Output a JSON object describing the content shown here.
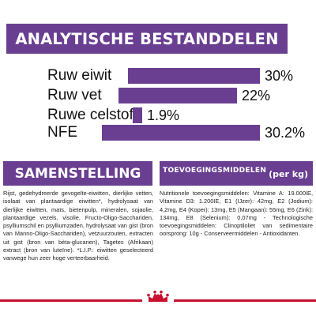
{
  "analysis": {
    "title": "ANALYTISCHE BESTANDDELEN",
    "rows": [
      {
        "label": "Ruw eiwit",
        "value_text": "30%",
        "value": 30
      },
      {
        "label": "Ruw vet",
        "value_text": "22%",
        "value": 22
      },
      {
        "label": "Ruwe celstof",
        "value_text": "1.9%",
        "value": 1.9
      },
      {
        "label": "NFE",
        "value_text": "30.2%",
        "value": 30.2
      }
    ],
    "bar_color": "#6a3f91"
  },
  "composition": {
    "heading": "SAMENSTELLING",
    "text": "Rijst, gedehydreerde gevogelte-eiwitten, dierlijke vetten, isolaat van plantaardige eiwitten*, hydrolysaat van dierlijke eiwitten, maïs, bietenpulp, mineralen, sojaolie, plantaardige vezels, visolie, Fructo-Oligo-Sacchariden, psylliumschil en psylliumzaden, hydrolysaat van gist (bron van Manno-Oligo-Sacchariden), vetzuurzouten, extracten uit gist (bron van bèta-glucanen), Tagetes (Afrikaan) extract (bron van luteïne). *L.I.P.: eiwitten geselecteerd vanwege hun zeer hoge verteerbaarheid."
  },
  "additives": {
    "heading": "TOEVOEGINGSMIDDELEN",
    "unit": "(per kg)",
    "text": "Nutritionele toevoegingsmiddelen: Vitamine A: 19.000IE, Vitamine D3: 1.200IE, E1 (IJzer): 42mg, E2 (Jodium): 4,2mg, E4 (Koper): 13mg, E5 (Mangaan): 55mg, E6 (Zink): 134mg, E8 (Selenium): 0,07mg - Technologische toevoegingsmiddelen: Clinoptiloliet van sedimentaire oorsprong: 10g - Conserveermiddelen - Antioxidanten."
  },
  "brand": {
    "logo": "royal-canin-crown-logo",
    "accent_color": "#c8102e"
  }
}
